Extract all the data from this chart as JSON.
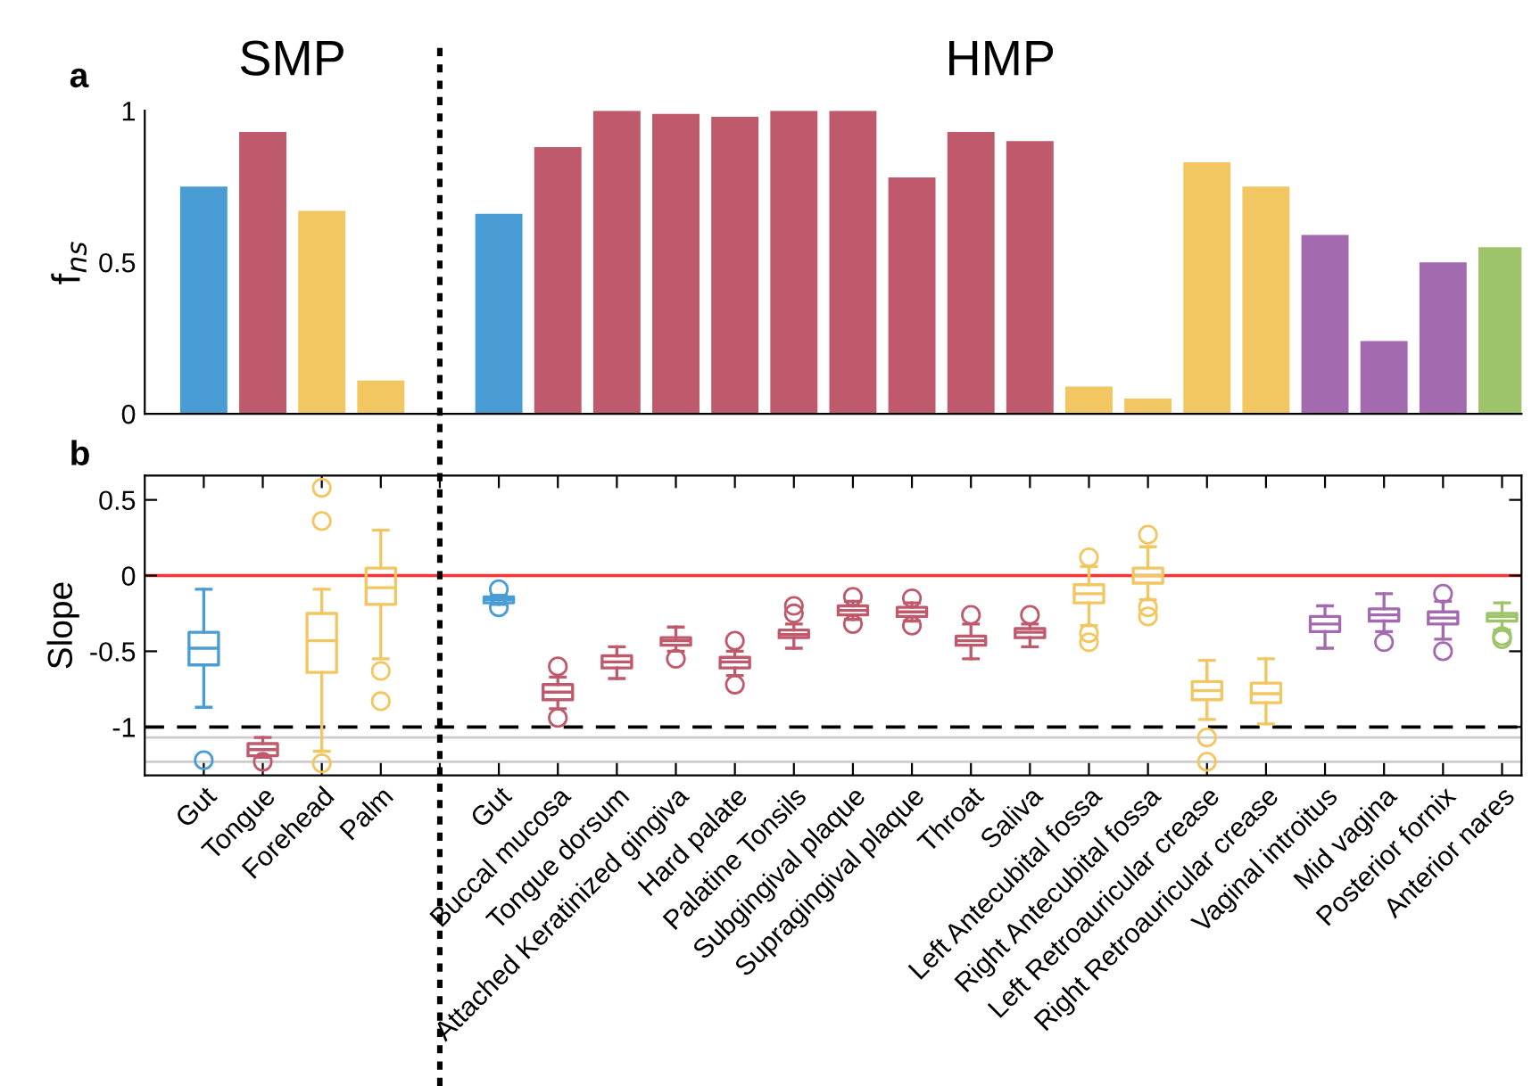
{
  "chart_data": [
    {
      "type": "bar",
      "ylabel": "f$_{ns}$",
      "annotations": [
        "a",
        "SMP",
        "HMP"
      ],
      "categories": [
        null,
        null,
        null,
        null,
        null,
        null,
        null,
        null,
        null,
        null,
        null,
        null,
        null,
        null,
        null,
        null,
        null,
        null,
        null,
        null,
        null,
        null,
        null
      ],
      "values": [
        0.75,
        0.93,
        0.67,
        0.11,
        null,
        0.66,
        0.88,
        1.0,
        0.99,
        0.98,
        1.0,
        1.0,
        0.78,
        0.93,
        0.9,
        0.09,
        0.05,
        0.83,
        0.75,
        0.59,
        0.24,
        0.5,
        0.55
      ],
      "colors": [
        "#4a9dd4",
        "#bf5a6c",
        "#f2c660",
        "#f2c660",
        null,
        "#4a9dd4",
        "#bf5a6c",
        "#bf5a6c",
        "#bf5a6c",
        "#bf5a6c",
        "#bf5a6c",
        "#bf5a6c",
        "#bf5a6c",
        "#bf5a6c",
        "#bf5a6c",
        "#f2c660",
        "#f2c660",
        "#f2c660",
        "#f2c660",
        "#a46ab0",
        "#a46ab0",
        "#a46ab0",
        "#9dc46a"
      ],
      "ylim": [
        0,
        1
      ],
      "yticks": [
        0,
        0.5,
        1
      ],
      "grid": false,
      "legend": false
    },
    {
      "type": "box",
      "ylabel": "Slope",
      "annotations": [
        "b"
      ],
      "categories": [
        "Gut",
        "Tongue",
        "Forehead",
        "Palm",
        null,
        "Gut",
        "Buccal mucosa",
        "Tongue dorsum",
        "Attached Keratinized gingiva",
        "Hard palate",
        "Palatine Tonsils",
        "Subgingival plaque",
        "Supragingival plaque",
        "Throat",
        "Saliva",
        "Left Antecubital fossa",
        "Right Antecubital fossa",
        "Left Retroauricular crease",
        "Right Retroauricular crease",
        "Vaginal introitus",
        "Mid vagina",
        "Posterior fornix",
        "Anterior nares"
      ],
      "boxes": [
        {
          "low": -0.87,
          "q1": -0.59,
          "median": -0.48,
          "q3": -0.375,
          "high": -0.09,
          "outliers": [
            -1.22
          ]
        },
        {
          "low": -1.2,
          "q1": -1.19,
          "median": -1.15,
          "q3": -1.11,
          "high": -1.07,
          "outliers": [
            -1.23
          ]
        },
        {
          "low": -1.16,
          "q1": -0.64,
          "median": -0.43,
          "q3": -0.25,
          "high": -0.09,
          "outliers": [
            0.58,
            0.36,
            -1.24
          ]
        },
        {
          "low": -0.55,
          "q1": -0.19,
          "median": -0.08,
          "q3": 0.05,
          "high": 0.3,
          "outliers": [
            -0.63,
            -0.83
          ]
        },
        null,
        {
          "low": -0.19,
          "q1": -0.18,
          "median": -0.16,
          "q3": -0.14,
          "high": -0.13,
          "outliers": [
            -0.09,
            -0.21
          ]
        },
        {
          "low": -0.88,
          "q1": -0.82,
          "median": -0.77,
          "q3": -0.72,
          "high": -0.67,
          "outliers": [
            -0.6,
            -0.94
          ]
        },
        {
          "low": -0.68,
          "q1": -0.61,
          "median": -0.57,
          "q3": -0.53,
          "high": -0.47
        },
        {
          "low": -0.5,
          "q1": -0.46,
          "median": -0.43,
          "q3": -0.41,
          "high": -0.34,
          "outliers": [
            -0.55
          ]
        },
        {
          "low": -0.66,
          "q1": -0.61,
          "median": -0.57,
          "q3": -0.54,
          "high": -0.5,
          "outliers": [
            -0.43,
            -0.72
          ]
        },
        {
          "low": -0.48,
          "q1": -0.41,
          "median": -0.39,
          "q3": -0.36,
          "high": -0.32,
          "outliers": [
            -0.2,
            -0.25
          ]
        },
        {
          "low": -0.29,
          "q1": -0.26,
          "median": -0.23,
          "q3": -0.2,
          "high": -0.17,
          "outliers": [
            -0.14,
            -0.32
          ]
        },
        {
          "low": -0.3,
          "q1": -0.27,
          "median": -0.24,
          "q3": -0.21,
          "high": -0.18,
          "outliers": [
            -0.15,
            -0.33
          ]
        },
        {
          "low": -0.55,
          "q1": -0.46,
          "median": -0.43,
          "q3": -0.4,
          "high": -0.32,
          "outliers": [
            -0.26
          ]
        },
        {
          "low": -0.47,
          "q1": -0.41,
          "median": -0.375,
          "q3": -0.35,
          "high": -0.32,
          "outliers": [
            -0.26
          ]
        },
        {
          "low": -0.33,
          "q1": -0.18,
          "median": -0.12,
          "q3": -0.06,
          "high": 0.06,
          "outliers": [
            0.12,
            -0.38,
            -0.44
          ]
        },
        {
          "low": -0.16,
          "q1": -0.05,
          "median": 0.0,
          "q3": 0.05,
          "high": 0.19,
          "outliers": [
            0.27,
            -0.21,
            -0.27
          ]
        },
        {
          "low": -0.95,
          "q1": -0.82,
          "median": -0.76,
          "q3": -0.7,
          "high": -0.56,
          "outliers": [
            -1.07,
            -1.23
          ]
        },
        {
          "low": -0.98,
          "q1": -0.84,
          "median": -0.78,
          "q3": -0.71,
          "high": -0.55
        },
        {
          "low": -0.48,
          "q1": -0.37,
          "median": -0.32,
          "q3": -0.27,
          "high": -0.2
        },
        {
          "low": -0.37,
          "q1": -0.3,
          "median": -0.26,
          "q3": -0.22,
          "high": -0.12,
          "outliers": [
            -0.44
          ]
        },
        {
          "low": -0.42,
          "q1": -0.32,
          "median": -0.28,
          "q3": -0.24,
          "high": -0.17,
          "outliers": [
            -0.12,
            -0.5
          ]
        },
        {
          "low": -0.36,
          "q1": -0.3,
          "median": -0.27,
          "q3": -0.25,
          "high": -0.18,
          "outliers": [
            -0.4,
            -0.42
          ]
        }
      ],
      "colors": [
        "#4a9dd4",
        "#bf5a6c",
        "#f2c660",
        "#f2c660",
        null,
        "#4a9dd4",
        "#bf5a6c",
        "#bf5a6c",
        "#bf5a6c",
        "#bf5a6c",
        "#bf5a6c",
        "#bf5a6c",
        "#bf5a6c",
        "#bf5a6c",
        "#bf5a6c",
        "#f2c660",
        "#f2c660",
        "#f2c660",
        "#f2c660",
        "#a46ab0",
        "#a46ab0",
        "#a46ab0",
        "#9dc46a"
      ],
      "ylim": [
        -1.32,
        0.66
      ],
      "yticks": [
        {
          "value": -1,
          "label": "-1"
        },
        {
          "value": -0.5,
          "label": "-0.5"
        },
        0,
        0.5
      ],
      "ref_lines": [
        {
          "axis": "y",
          "value": 0,
          "label": null,
          "color": "#ff3333",
          "line_style": "solid"
        },
        {
          "axis": "y",
          "value": -1,
          "label": null,
          "color": "#000000",
          "line_style": "dashed"
        },
        {
          "axis": "y",
          "value": -1.07,
          "label": null,
          "color": "#cccccc",
          "line_style": "solid"
        },
        {
          "axis": "y",
          "value": -1.23,
          "label": null,
          "color": "#cccccc",
          "line_style": "solid"
        }
      ],
      "grid": false,
      "legend": false
    }
  ]
}
